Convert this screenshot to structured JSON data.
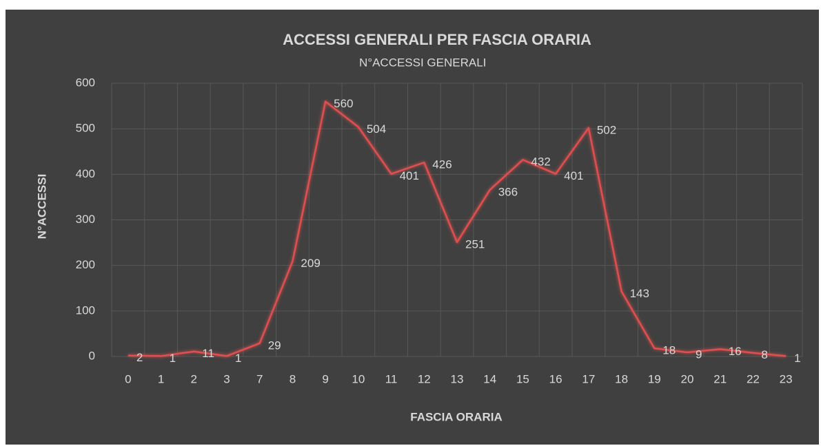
{
  "chart_data": {
    "type": "line",
    "title": "ACCESSI GENERALI PER FASCIA ORARIA",
    "x_label": "FASCIA ORARIA",
    "y_label": "N°ACCESSI",
    "categories": [
      "0",
      "1",
      "2",
      "3",
      "7",
      "8",
      "9",
      "10",
      "11",
      "12",
      "13",
      "14",
      "15",
      "16",
      "17",
      "18",
      "19",
      "20",
      "21",
      "22",
      "23"
    ],
    "series": [
      {
        "name": "N°ACCESSI GENERALI",
        "color": "#e0504f",
        "values": [
          2,
          1,
          11,
          1,
          29,
          209,
          560,
          504,
          401,
          426,
          251,
          366,
          432,
          401,
          502,
          143,
          18,
          9,
          16,
          8,
          1
        ]
      }
    ],
    "ylim": [
      0,
      600
    ],
    "yticks": [
      0,
      100,
      200,
      300,
      400,
      500,
      600
    ],
    "grid": true,
    "legend": "top"
  }
}
